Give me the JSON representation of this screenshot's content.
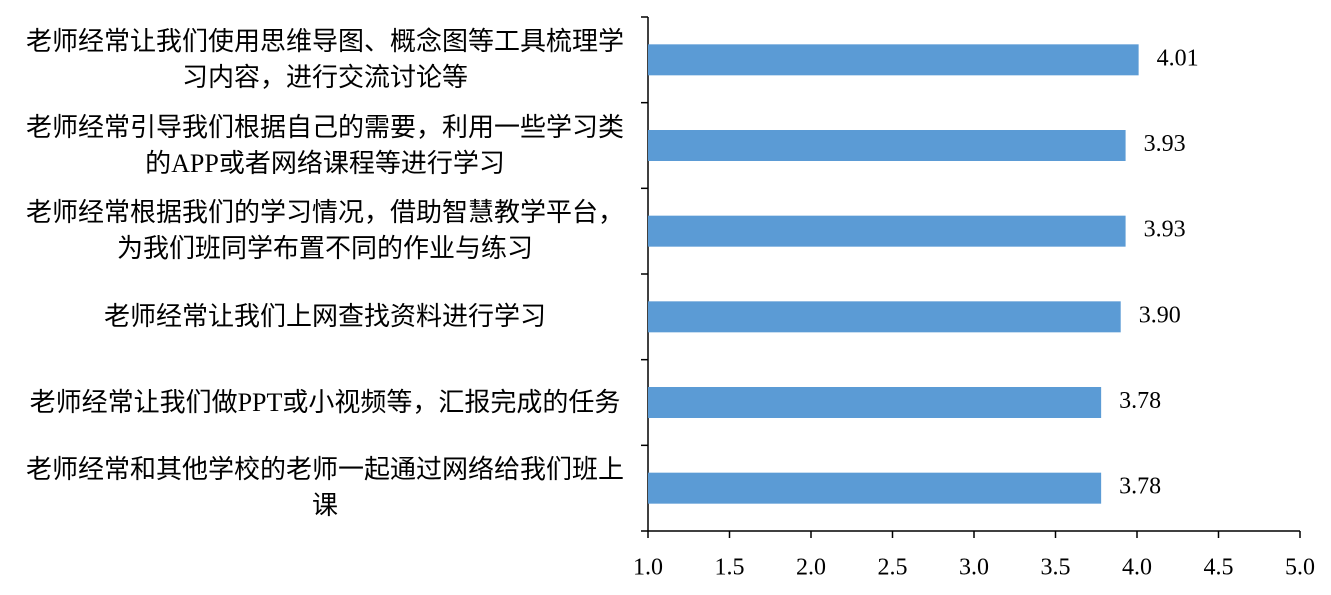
{
  "chart_data": {
    "type": "barh",
    "categories": [
      "老师经常让我们使用思维导图、概念图等工具梳理学习内容，进行交流讨论等",
      "老师经常引导我们根据自己的需要，利用一些学习类的APP或者网络课程等进行学习",
      "老师经常根据我们的学习情况，借助智慧教学平台，为我们班同学布置不同的作业与练习",
      "老师经常让我们上网查找资料进行学习",
      "老师经常让我们做PPT或小视频等，汇报完成的任务",
      "老师经常和其他学校的老师一起通过网络给我们班上课"
    ],
    "values": [
      4.01,
      3.93,
      3.93,
      3.9,
      3.78,
      3.78
    ],
    "value_labels": [
      "4.01",
      "3.93",
      "3.93",
      "3.90",
      "3.78",
      "3.78"
    ],
    "color": "#5b9bd5",
    "xlim": [
      1,
      5
    ],
    "xticks": [
      {
        "value": 1,
        "label": "1.0"
      },
      1.5,
      {
        "value": 2,
        "label": "2.0"
      },
      2.5,
      {
        "value": 3,
        "label": "3.0"
      },
      3.5,
      {
        "value": 4,
        "label": "4.0"
      },
      4.5,
      {
        "value": 5,
        "label": "5.0"
      }
    ]
  }
}
